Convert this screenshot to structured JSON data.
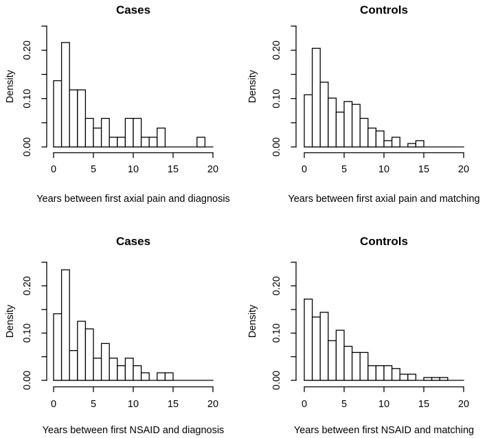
{
  "page": {
    "background": "#ffffff",
    "line_color": "#000000",
    "bar_fill": "#ffffff",
    "text_color": "#000000"
  },
  "chart_data": [
    {
      "type": "bar",
      "subtype": "histogram",
      "panel": "top-left",
      "title": "Cases",
      "xlabel": "Years between first axial pain and diagnosis",
      "ylabel": "Density",
      "xlim": [
        0,
        20
      ],
      "ylim": [
        0,
        0.25
      ],
      "bin_start": 0,
      "bin_width": 1,
      "grid": false,
      "x_ticks": [
        0,
        5,
        10,
        15,
        20
      ],
      "y_ticks": [
        0,
        0.05,
        0.1,
        0.15,
        0.2,
        0.25
      ],
      "y_tick_labels": [
        {
          "at": 0,
          "label": "0.00"
        },
        {
          "at": 0.1,
          "label": "0.10"
        },
        {
          "at": 0.2,
          "label": "0.20"
        }
      ],
      "densities": [
        0.137,
        0.216,
        0.118,
        0.118,
        0.059,
        0.039,
        0.059,
        0.02,
        0.02,
        0.059,
        0.059,
        0.02,
        0.02,
        0.039,
        0,
        0,
        0,
        0,
        0.02,
        0
      ]
    },
    {
      "type": "bar",
      "subtype": "histogram",
      "panel": "top-right",
      "title": "Controls",
      "xlabel": "Years between first axial pain and matching",
      "ylabel": "Density",
      "xlim": [
        0,
        20
      ],
      "ylim": [
        0,
        0.25
      ],
      "bin_start": 0,
      "bin_width": 1,
      "grid": false,
      "x_ticks": [
        0,
        5,
        10,
        15,
        20
      ],
      "y_ticks": [
        0,
        0.05,
        0.1,
        0.15,
        0.2,
        0.25
      ],
      "y_tick_labels": [
        {
          "at": 0,
          "label": "0.00"
        },
        {
          "at": 0.1,
          "label": "0.10"
        },
        {
          "at": 0.2,
          "label": "0.20"
        }
      ],
      "densities": [
        0.108,
        0.204,
        0.134,
        0.101,
        0.072,
        0.094,
        0.088,
        0.059,
        0.039,
        0.033,
        0.013,
        0.02,
        0,
        0.007,
        0.013,
        0,
        0,
        0,
        0,
        0
      ]
    },
    {
      "type": "bar",
      "subtype": "histogram",
      "panel": "bottom-left",
      "title": "Cases",
      "xlabel": "Years between first NSAID and diagnosis",
      "ylabel": "Density",
      "xlim": [
        0,
        20
      ],
      "ylim": [
        0,
        0.25
      ],
      "bin_start": 0,
      "bin_width": 1,
      "grid": false,
      "x_ticks": [
        0,
        5,
        10,
        15,
        20
      ],
      "y_ticks": [
        0,
        0.05,
        0.1,
        0.15,
        0.2,
        0.25
      ],
      "y_tick_labels": [
        {
          "at": 0,
          "label": "0.00"
        },
        {
          "at": 0.1,
          "label": "0.10"
        },
        {
          "at": 0.2,
          "label": "0.20"
        }
      ],
      "densities": [
        0.141,
        0.234,
        0.063,
        0.125,
        0.109,
        0.047,
        0.078,
        0.047,
        0.031,
        0.047,
        0.031,
        0.016,
        0,
        0.016,
        0.016,
        0,
        0,
        0,
        0,
        0
      ]
    },
    {
      "type": "bar",
      "subtype": "histogram",
      "panel": "bottom-right",
      "title": "Controls",
      "xlabel": "Years between first NSAID and matching",
      "ylabel": "Density",
      "xlim": [
        0,
        20
      ],
      "ylim": [
        0,
        0.25
      ],
      "bin_start": 0,
      "bin_width": 1,
      "grid": false,
      "x_ticks": [
        0,
        5,
        10,
        15,
        20
      ],
      "y_ticks": [
        0,
        0.05,
        0.1,
        0.15,
        0.2,
        0.25
      ],
      "y_tick_labels": [
        {
          "at": 0,
          "label": "0.00"
        },
        {
          "at": 0.1,
          "label": "0.10"
        },
        {
          "at": 0.2,
          "label": "0.20"
        }
      ],
      "densities": [
        0.172,
        0.134,
        0.144,
        0.084,
        0.106,
        0.072,
        0.059,
        0.059,
        0.031,
        0.031,
        0.031,
        0.025,
        0.013,
        0.013,
        0,
        0.006,
        0.006,
        0.006,
        0,
        0
      ]
    }
  ]
}
